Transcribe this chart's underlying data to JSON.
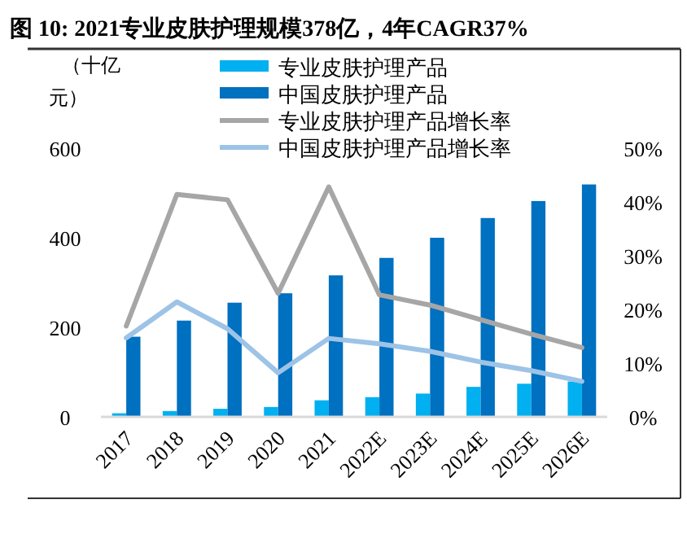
{
  "chart_data": {
    "type": "bar",
    "title": "图 10: 2021专业皮肤护理规模378亿，4年CAGR37%",
    "ylabel": "（十亿元）",
    "categories": [
      "2017",
      "2018",
      "2019",
      "2020",
      "2021",
      "2022E",
      "2023E",
      "2024E",
      "2025E",
      "2026E"
    ],
    "series": [
      {
        "name": "专业皮肤护理产品",
        "color": "#00b0f0",
        "values": [
          8,
          13,
          18,
          22,
          37,
          44,
          52,
          67,
          74,
          79
        ]
      },
      {
        "name": "中国皮肤护理产品",
        "color": "#0070c0",
        "values": [
          179,
          215,
          255,
          276,
          316,
          355,
          400,
          444,
          482,
          519
        ]
      },
      {
        "name": "专业皮肤护理产品增长率",
        "type": "line",
        "axis": "y2",
        "color": "#a6a6a6",
        "values": [
          16.9,
          41.4,
          40.4,
          23,
          42.8,
          22.7,
          20.8,
          18.1,
          15.4,
          12.9
        ]
      },
      {
        "name": "中国皮肤护理产品增长率",
        "type": "line",
        "axis": "y2",
        "color": "#9dc3e6",
        "values": [
          14.7,
          21.4,
          16.4,
          8.2,
          14.6,
          13.6,
          12.2,
          10.2,
          8.6,
          6.6
        ]
      }
    ],
    "ylim": [
      0,
      600
    ],
    "yticks": [
      0,
      200,
      400,
      600
    ],
    "y2lim": [
      0,
      50
    ],
    "y2ticks": [
      {
        "value": 0,
        "label": "0%"
      },
      {
        "value": 10,
        "label": "10%"
      },
      {
        "value": 20,
        "label": "20%"
      },
      {
        "value": 30,
        "label": "30%"
      },
      {
        "value": 40,
        "label": "40%"
      },
      {
        "value": 50,
        "label": "50%"
      }
    ],
    "grid": false,
    "legend": "top",
    "marker": "none",
    "line_style": "solid"
  }
}
